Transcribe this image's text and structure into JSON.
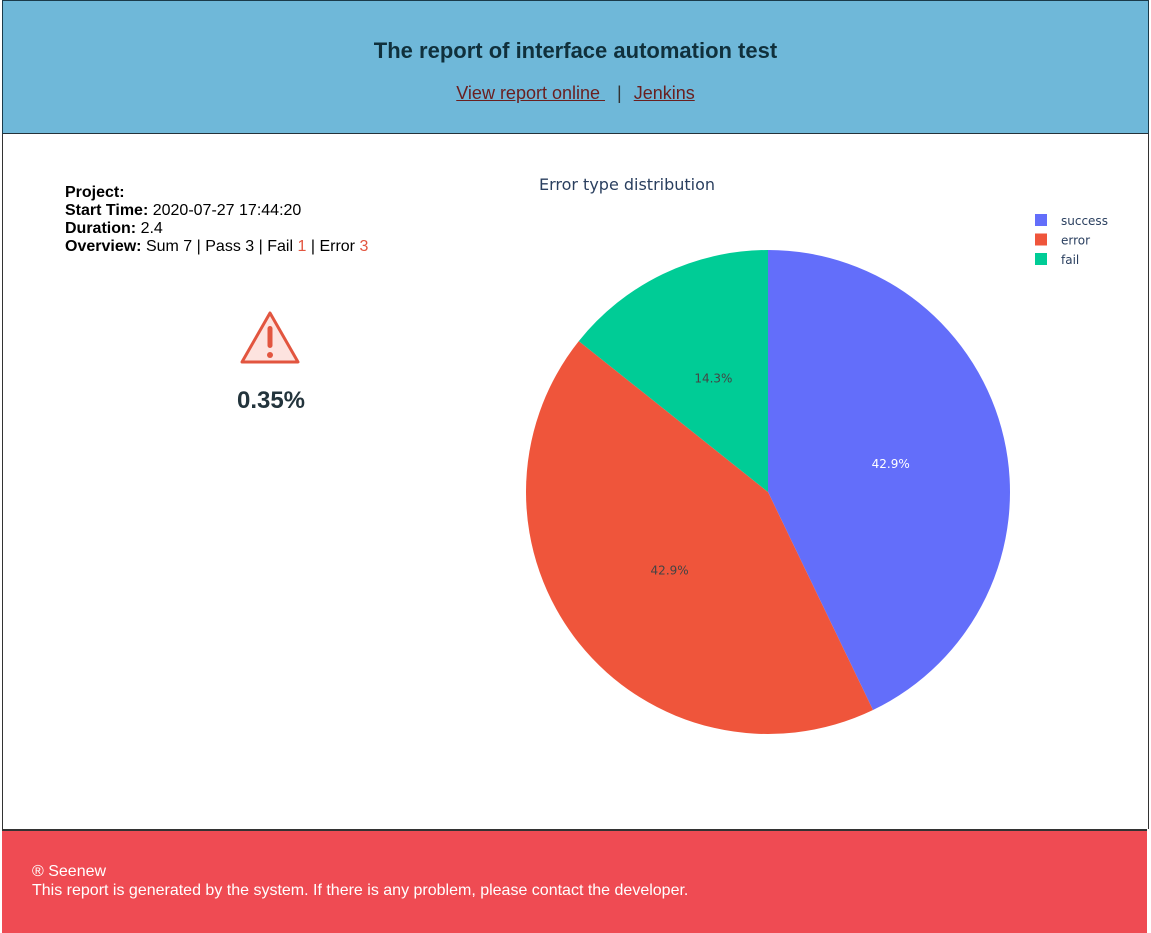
{
  "header": {
    "title": "The report of interface automation test",
    "link_online": "View report online ",
    "separator": "|",
    "link_jenkins": "Jenkins"
  },
  "info": {
    "project_label": "Project:",
    "project_value": "",
    "start_label": "Start Time:",
    "start_value": "2020-07-27 17:44:20",
    "duration_label": "Duration:",
    "duration_value": "2.4",
    "overview_label": "Overview:",
    "sum_text": "Sum 7",
    "pass_text": "Pass 3",
    "fail_text": "Fail",
    "fail_count": "1",
    "error_text": "Error",
    "error_count": "3",
    "divider": "|"
  },
  "status": {
    "icon": "warning-icon",
    "rate": "0.35%"
  },
  "chart_data": {
    "type": "pie",
    "title": "Error type distribution",
    "labels": [
      "success",
      "error",
      "fail"
    ],
    "values": [
      3,
      3,
      1
    ],
    "percent_labels": [
      "42.9%",
      "42.9%",
      "14.3%"
    ],
    "colors": [
      "#636efa",
      "#ef553b",
      "#00cc96"
    ],
    "legend_position": "top-right",
    "direction": "clockwise",
    "start": "top"
  },
  "footer": {
    "line1": "® Seenew",
    "line2": "This report is generated by the system. If there is any problem, please contact the developer."
  },
  "colors": {
    "header_bg": "#6fb8d9",
    "footer_bg": "#ef4b53",
    "accent_red": "#e2553f"
  }
}
